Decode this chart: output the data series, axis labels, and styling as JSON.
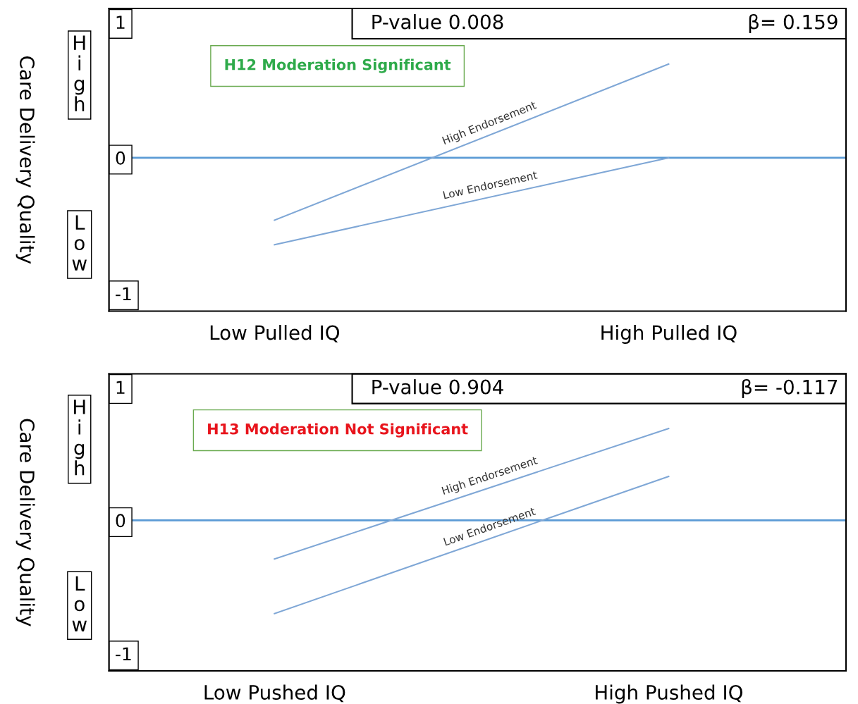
{
  "chart_data": [
    {
      "type": "line",
      "ylabel": "Care Delivery Quality",
      "annotations": [
        "P-value 0.008",
        "β= 0.159",
        "H12 Moderation Significant",
        "High",
        "Low"
      ],
      "categories": [
        "Low Pulled IQ",
        "High Pulled IQ"
      ],
      "ylim": [
        -1.13,
        1.1
      ],
      "yticks": [
        -1,
        0,
        1
      ],
      "grid": false,
      "legend": false,
      "ref_lines": [
        {
          "axis": "y",
          "value": 0,
          "color": "#5b9bd5"
        }
      ],
      "series": [
        {
          "name": "High Endorsement",
          "color": "#7fa7d6",
          "values": [
            -0.46,
            0.69
          ]
        },
        {
          "name": "Low Endorsement",
          "color": "#7fa7d6",
          "values": [
            -0.64,
            0.0
          ]
        }
      ]
    },
    {
      "type": "line",
      "ylabel": "Care Delivery Quality",
      "annotations": [
        "P-value 0.904",
        "β= -0.117",
        "H13 Moderation Not Significant",
        "High",
        "Low"
      ],
      "categories": [
        "Low Pushed IQ",
        "High Pushed IQ"
      ],
      "ylim": [
        -1.13,
        1.1
      ],
      "yticks": [
        -1,
        0,
        1
      ],
      "grid": false,
      "legend": false,
      "ref_lines": [
        {
          "axis": "y",
          "value": 0,
          "color": "#5b9bd5"
        }
      ],
      "series": [
        {
          "name": "High Endorsement",
          "color": "#7fa7d6",
          "values": [
            -0.29,
            0.69
          ]
        },
        {
          "name": "Low Endorsement",
          "color": "#7fa7d6",
          "values": [
            -0.7,
            0.33
          ]
        }
      ]
    }
  ]
}
